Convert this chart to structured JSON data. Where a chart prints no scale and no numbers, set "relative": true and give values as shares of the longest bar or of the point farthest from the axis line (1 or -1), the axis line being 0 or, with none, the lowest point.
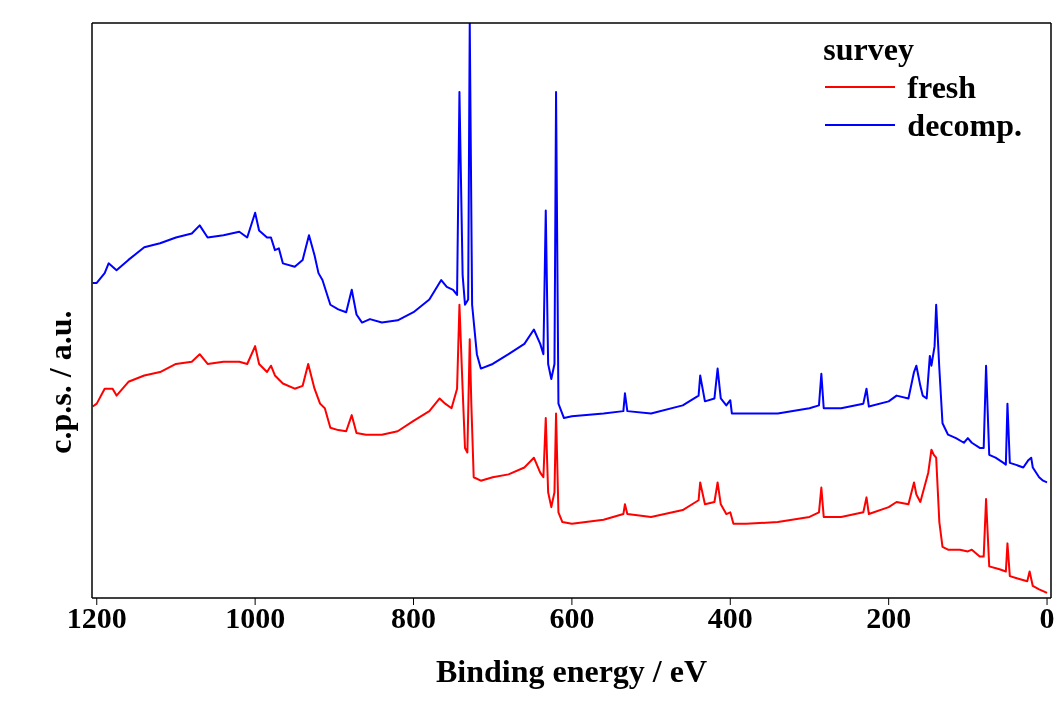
{
  "chart_data": {
    "type": "line",
    "xlabel": "Binding energy / eV",
    "ylabel": "c.p.s. / a.u.",
    "legend_title": "survey",
    "legend": "top right",
    "relative": true,
    "marker": "none",
    "line_style": "solid",
    "tick_labels": "x",
    "xlim": [
      1206,
      -5
    ],
    "xticks": [
      1200,
      1000,
      800,
      600,
      400,
      200,
      0
    ],
    "series": [
      {
        "name": "fresh",
        "color": "#ff0000",
        "x": [
          1205,
          1200,
          1190,
          1180,
          1175,
          1160,
          1140,
          1120,
          1100,
          1080,
          1070,
          1060,
          1040,
          1020,
          1010,
          1000,
          995,
          985,
          980,
          975,
          965,
          950,
          940,
          933,
          925,
          918,
          912,
          905,
          895,
          885,
          878,
          872,
          860,
          840,
          820,
          800,
          780,
          767,
          760,
          752,
          745,
          742,
          738,
          735,
          732,
          729,
          727,
          724,
          715,
          700,
          680,
          660,
          648,
          640,
          636,
          633,
          630,
          626,
          622,
          620,
          617,
          612,
          600,
          560,
          535,
          533,
          530,
          500,
          460,
          440,
          438,
          432,
          420,
          416,
          412,
          405,
          400,
          396,
          380,
          340,
          300,
          288,
          285,
          282,
          260,
          232,
          228,
          225,
          200,
          190,
          175,
          168,
          165,
          160,
          150,
          146,
          143,
          140,
          136,
          132,
          125,
          110,
          100,
          95,
          85,
          80,
          77,
          73,
          60,
          52,
          50,
          47,
          35,
          25,
          22,
          18,
          10,
          0
        ],
        "values": [
          0.333,
          0.338,
          0.364,
          0.364,
          0.352,
          0.376,
          0.387,
          0.393,
          0.407,
          0.411,
          0.424,
          0.407,
          0.411,
          0.411,
          0.407,
          0.438,
          0.407,
          0.393,
          0.404,
          0.387,
          0.373,
          0.364,
          0.369,
          0.407,
          0.364,
          0.338,
          0.33,
          0.296,
          0.292,
          0.29,
          0.318,
          0.287,
          0.284,
          0.284,
          0.29,
          0.308,
          0.325,
          0.347,
          0.338,
          0.33,
          0.364,
          0.51,
          0.364,
          0.261,
          0.253,
          0.45,
          0.338,
          0.21,
          0.204,
          0.21,
          0.215,
          0.227,
          0.244,
          0.218,
          0.21,
          0.313,
          0.184,
          0.158,
          0.184,
          0.321,
          0.149,
          0.132,
          0.129,
          0.136,
          0.146,
          0.163,
          0.146,
          0.141,
          0.153,
          0.17,
          0.201,
          0.163,
          0.167,
          0.201,
          0.163,
          0.146,
          0.149,
          0.129,
          0.129,
          0.132,
          0.141,
          0.149,
          0.192,
          0.141,
          0.141,
          0.149,
          0.175,
          0.146,
          0.158,
          0.167,
          0.163,
          0.201,
          0.18,
          0.167,
          0.218,
          0.258,
          0.249,
          0.244,
          0.132,
          0.089,
          0.084,
          0.084,
          0.081,
          0.084,
          0.072,
          0.072,
          0.172,
          0.055,
          0.05,
          0.046,
          0.095,
          0.038,
          0.033,
          0.029,
          0.046,
          0.021,
          0.015,
          0.009
        ]
      },
      {
        "name": "decomp.",
        "color": "#0000ff",
        "x": [
          1205,
          1200,
          1190,
          1185,
          1175,
          1160,
          1140,
          1120,
          1100,
          1080,
          1070,
          1060,
          1040,
          1020,
          1010,
          1000,
          995,
          985,
          980,
          975,
          970,
          965,
          950,
          940,
          932,
          925,
          920,
          915,
          905,
          895,
          885,
          878,
          872,
          865,
          855,
          840,
          820,
          800,
          780,
          765,
          758,
          750,
          745,
          742,
          738,
          735,
          731,
          729,
          726,
          720,
          715,
          700,
          680,
          660,
          648,
          640,
          636,
          633,
          630,
          626,
          622,
          620,
          617,
          610,
          600,
          560,
          535,
          533,
          530,
          500,
          460,
          440,
          438,
          432,
          420,
          416,
          412,
          405,
          400,
          398,
          380,
          340,
          300,
          288,
          285,
          282,
          260,
          232,
          228,
          225,
          200,
          190,
          175,
          168,
          165,
          160,
          157,
          152,
          148,
          146,
          142,
          140,
          136,
          132,
          125,
          115,
          105,
          100,
          95,
          85,
          80,
          77,
          73,
          65,
          55,
          52,
          50,
          47,
          40,
          30,
          24,
          20,
          18,
          10,
          5,
          0
        ],
        "values": [
          0.548,
          0.548,
          0.565,
          0.582,
          0.57,
          0.588,
          0.61,
          0.617,
          0.627,
          0.634,
          0.648,
          0.627,
          0.631,
          0.637,
          0.627,
          0.67,
          0.639,
          0.627,
          0.627,
          0.605,
          0.608,
          0.582,
          0.576,
          0.588,
          0.631,
          0.596,
          0.565,
          0.553,
          0.51,
          0.502,
          0.497,
          0.536,
          0.493,
          0.479,
          0.485,
          0.479,
          0.483,
          0.497,
          0.519,
          0.553,
          0.541,
          0.536,
          0.527,
          0.88,
          0.562,
          0.51,
          0.519,
          1,
          0.51,
          0.424,
          0.399,
          0.407,
          0.424,
          0.442,
          0.467,
          0.442,
          0.424,
          0.674,
          0.407,
          0.381,
          0.407,
          0.88,
          0.338,
          0.313,
          0.316,
          0.321,
          0.325,
          0.356,
          0.325,
          0.321,
          0.335,
          0.352,
          0.387,
          0.342,
          0.347,
          0.399,
          0.347,
          0.335,
          0.344,
          0.321,
          0.321,
          0.321,
          0.33,
          0.335,
          0.39,
          0.33,
          0.33,
          0.338,
          0.364,
          0.333,
          0.342,
          0.352,
          0.347,
          0.393,
          0.404,
          0.369,
          0.352,
          0.347,
          0.421,
          0.404,
          0.438,
          0.51,
          0.399,
          0.304,
          0.284,
          0.278,
          0.27,
          0.278,
          0.27,
          0.261,
          0.261,
          0.404,
          0.249,
          0.244,
          0.235,
          0.232,
          0.338,
          0.235,
          0.232,
          0.227,
          0.239,
          0.244,
          0.227,
          0.21,
          0.204,
          0.201
        ]
      }
    ]
  }
}
